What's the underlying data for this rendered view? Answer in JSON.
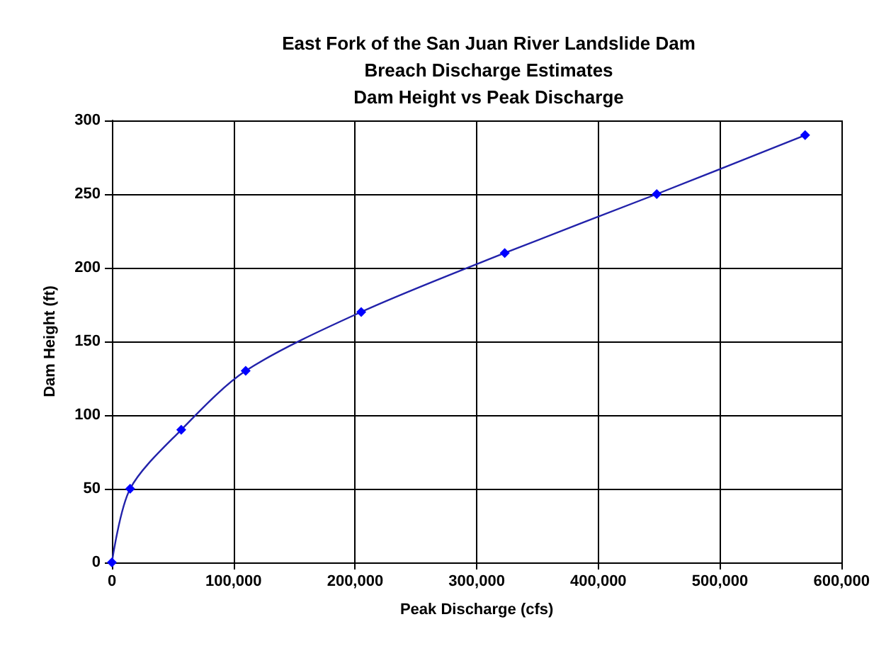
{
  "chart_data": {
    "type": "line",
    "title": "East Fork of the San Juan River Landslide Dam\nBreach Discharge Estimates\nDam Height vs Peak Discharge",
    "xlabel": "Peak Discharge (cfs)",
    "ylabel": "Dam Height (ft)",
    "x": [
      0,
      15000,
      57000,
      110000,
      205000,
      323000,
      448000,
      570000
    ],
    "series": [
      {
        "color": "#0000ff",
        "values": [
          0,
          50,
          90,
          130,
          170,
          210,
          250,
          290
        ]
      }
    ],
    "xlim": [
      0,
      600000
    ],
    "xticks": [
      {
        "value": 0,
        "label": "0"
      },
      {
        "value": 100000,
        "label": "100,000"
      },
      {
        "value": 200000,
        "label": "200,000"
      },
      {
        "value": 300000,
        "label": "300,000"
      },
      {
        "value": 400000,
        "label": "400,000"
      },
      {
        "value": 500000,
        "label": "500,000"
      },
      {
        "value": 600000,
        "label": "600,000"
      }
    ],
    "ylim": [
      0,
      300
    ],
    "yticks": [
      0,
      50,
      100,
      150,
      200,
      250,
      300
    ],
    "grid": true,
    "marker": "diamond",
    "line_style": "solid"
  }
}
